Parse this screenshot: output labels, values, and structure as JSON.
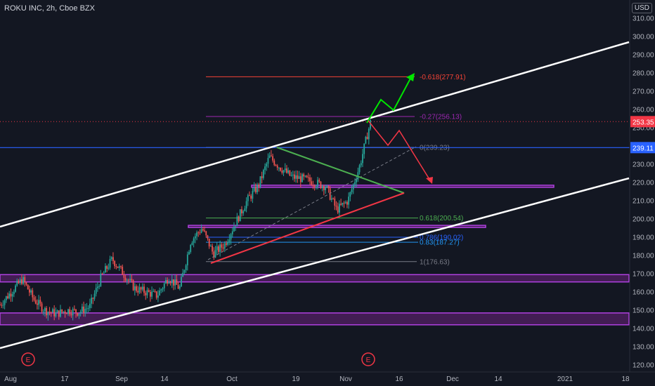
{
  "header": {
    "title": "ROKU INC, 2h, Cboe BZX",
    "currency": "USD"
  },
  "chart_data": {
    "type": "candlestick",
    "y_ticks": [
      120,
      130,
      140,
      150,
      160,
      170,
      180,
      190,
      200,
      210,
      220,
      230,
      240,
      250,
      260,
      270,
      280,
      290,
      300,
      310
    ],
    "y_tick_labels": [
      "120.00",
      "130.00",
      "140.00",
      "150.00",
      "160.00",
      "170.00",
      "180.00",
      "190.00",
      "200.00",
      "210.00",
      "220.00",
      "230.00",
      "240.00",
      "250.00",
      "260.00",
      "270.00",
      "280.00",
      "290.00",
      "300.00",
      "310.00"
    ],
    "x_labels": [
      "Aug",
      "17",
      "Sep",
      "14",
      "Oct",
      "19",
      "Nov",
      "16",
      "Dec",
      "14",
      "2021",
      "18"
    ],
    "current_price": {
      "value": 253.35,
      "label": "253.35"
    },
    "marked_price": {
      "value": 239.11,
      "label": "239.11"
    },
    "fib_levels": [
      {
        "label": "-0.618(277.91)",
        "value": 277.91,
        "color": "#f44336"
      },
      {
        "label": "-0.27(256.13)",
        "value": 256.13,
        "color": "#9c27b0"
      },
      {
        "label": "0(239.23)",
        "value": 239.23,
        "color": "#787b86"
      },
      {
        "label": "0.618(200.54)",
        "value": 200.54,
        "color": "#4caf50"
      },
      {
        "label": "0.786(190.02)",
        "value": 190.02,
        "color": "#2962ff"
      },
      {
        "label": "0.83(187.27)",
        "value": 187.27,
        "color": "#2196f3"
      },
      {
        "label": "1(176.63)",
        "value": 176.63,
        "color": "#787b86"
      }
    ],
    "zones": [
      {
        "from": 165.5,
        "to": 169.5
      },
      {
        "from": 142,
        "to": 148.5
      },
      {
        "from": 217.5,
        "to": 218.5
      },
      {
        "from": 195.5,
        "to": 196.5
      }
    ],
    "event_markers": [
      {
        "label": "E",
        "x_label": "Aug"
      },
      {
        "label": "E",
        "x_label": "Nov"
      }
    ],
    "price_path": [
      {
        "date": "Jul 29",
        "value": 153
      },
      {
        "date": "Aug 1",
        "value": 160
      },
      {
        "date": "Aug 4",
        "value": 167
      },
      {
        "date": "Aug 7",
        "value": 156
      },
      {
        "date": "Aug 11",
        "value": 150
      },
      {
        "date": "Aug 17",
        "value": 148
      },
      {
        "date": "Aug 21",
        "value": 150
      },
      {
        "date": "Aug 25",
        "value": 149
      },
      {
        "date": "Aug 28",
        "value": 152
      },
      {
        "date": "Aug 31",
        "value": 168
      },
      {
        "date": "Sep 3",
        "value": 178
      },
      {
        "date": "Sep 6",
        "value": 170
      },
      {
        "date": "Sep 9",
        "value": 162
      },
      {
        "date": "Sep 12",
        "value": 160
      },
      {
        "date": "Sep 15",
        "value": 158
      },
      {
        "date": "Sep 18",
        "value": 168
      },
      {
        "date": "Sep 21",
        "value": 162
      },
      {
        "date": "Sep 24",
        "value": 188
      },
      {
        "date": "Sep 27",
        "value": 195
      },
      {
        "date": "Sep 30",
        "value": 181
      },
      {
        "date": "Oct 3",
        "value": 186
      },
      {
        "date": "Oct 6",
        "value": 198
      },
      {
        "date": "Oct 9",
        "value": 210
      },
      {
        "date": "Oct 12",
        "value": 218
      },
      {
        "date": "Oct 15",
        "value": 234
      },
      {
        "date": "Oct 18",
        "value": 228
      },
      {
        "date": "Oct 21",
        "value": 223
      },
      {
        "date": "Oct 24",
        "value": 222
      },
      {
        "date": "Oct 27",
        "value": 220
      },
      {
        "date": "Oct 30",
        "value": 218
      },
      {
        "date": "Nov 2",
        "value": 205
      },
      {
        "date": "Nov 5",
        "value": 210
      },
      {
        "date": "Nov 7",
        "value": 228
      },
      {
        "date": "Nov 9",
        "value": 253
      }
    ]
  }
}
